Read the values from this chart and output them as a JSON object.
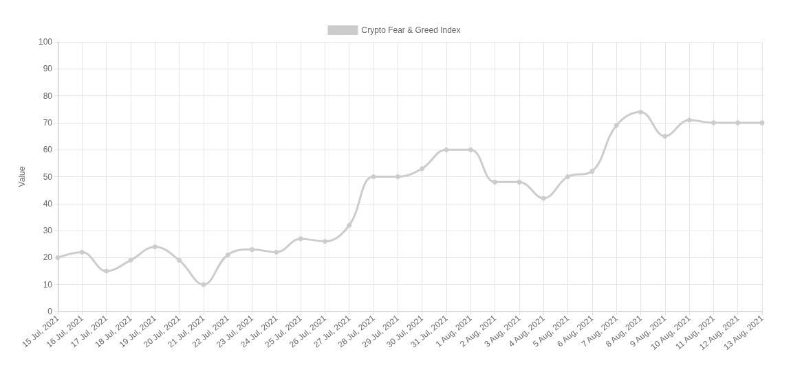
{
  "chart_data": {
    "type": "line",
    "ylabel": "Value",
    "categories": [
      "15 Jul, 2021",
      "16 Jul, 2021",
      "17 Jul, 2021",
      "18 Jul, 2021",
      "19 Jul, 2021",
      "20 Jul, 2021",
      "21 Jul, 2021",
      "22 Jul, 2021",
      "23 Jul, 2021",
      "24 Jul, 2021",
      "25 Jul, 2021",
      "26 Jul, 2021",
      "27 Jul, 2021",
      "28 Jul, 2021",
      "29 Jul, 2021",
      "30 Jul, 2021",
      "31 Jul, 2021",
      "1 Aug, 2021",
      "2 Aug, 2021",
      "3 Aug, 2021",
      "4 Aug, 2021",
      "5 Aug, 2021",
      "6 Aug, 2021",
      "7 Aug, 2021",
      "8 Aug, 2021",
      "9 Aug, 2021",
      "10 Aug, 2021",
      "11 Aug, 2021",
      "12 Aug, 2021",
      "13 Aug, 2021"
    ],
    "series": [
      {
        "name": "Crypto Fear & Greed Index",
        "color": "#cccccc",
        "values": [
          20,
          22,
          15,
          19,
          24,
          19,
          10,
          21,
          23,
          22,
          27,
          26,
          32,
          50,
          50,
          53,
          60,
          60,
          48,
          48,
          42,
          50,
          52,
          69,
          74,
          65,
          71,
          70,
          70,
          70
        ]
      }
    ],
    "ylim": [
      0,
      100
    ],
    "yticks": [
      0,
      10,
      20,
      30,
      40,
      50,
      60,
      70,
      80,
      90,
      100
    ],
    "grid": true,
    "legend": "top",
    "marker": "circle",
    "line_style": "solid"
  }
}
